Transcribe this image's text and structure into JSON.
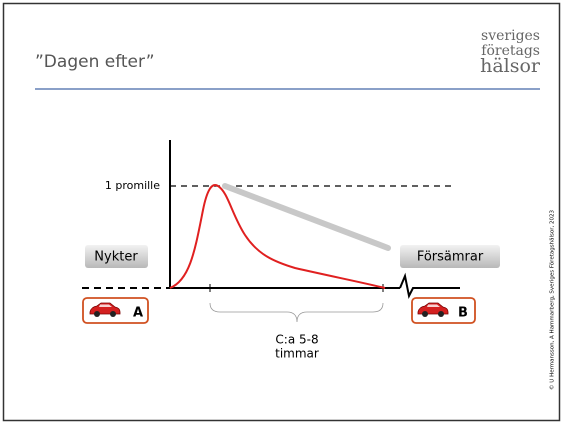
{
  "header": {
    "title": "”Dagen efter”",
    "logo": [
      "sveriges",
      "företags",
      "hälsor"
    ]
  },
  "diagram": {
    "level_label": "1 promille",
    "left_state": "Nykter",
    "right_state": "Försämrar",
    "start_marker": "A",
    "end_marker": "B",
    "duration": [
      "C:a 5-8",
      "timmar"
    ]
  },
  "footer": {
    "copyright": "© U Hermansson, A Hammarberg, Sveriges Företagshälsor, 2023"
  }
}
